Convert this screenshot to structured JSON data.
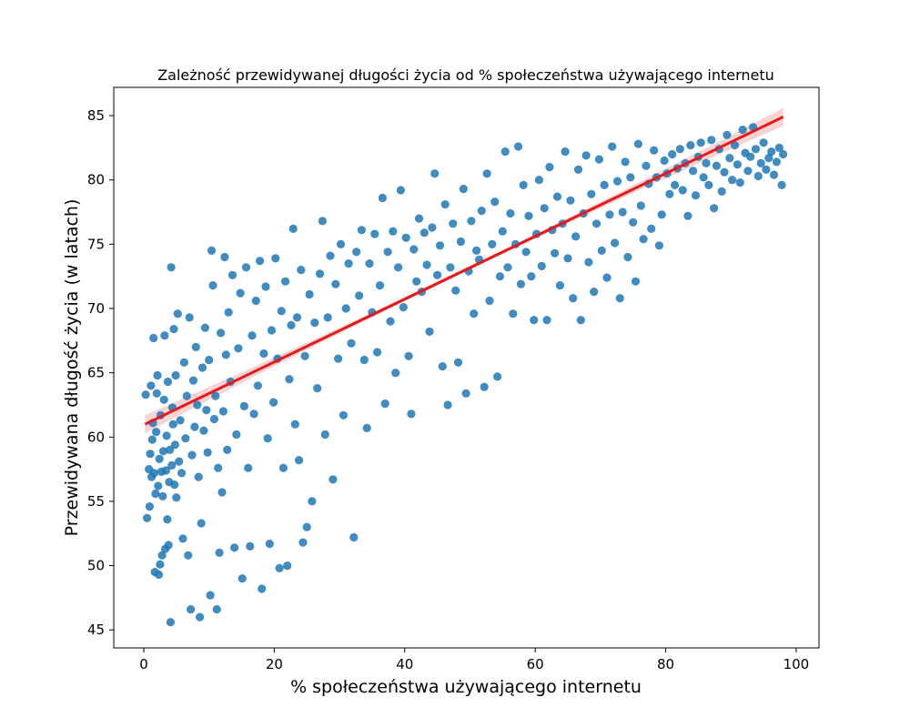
{
  "chart_data": {
    "type": "scatter",
    "title": "Zależność przewidywanej długości życia od % społeczeństwa używającego internetu",
    "xlabel": "% społeczeństwa używającego internetu",
    "ylabel": "Przewidywana długość życia (w latach)",
    "xlim": [
      -4.6,
      103.5
    ],
    "ylim": [
      43.6,
      87.2
    ],
    "xticks": [
      0,
      20,
      40,
      60,
      80,
      100
    ],
    "yticks": [
      45,
      50,
      55,
      60,
      65,
      70,
      75,
      80,
      85
    ],
    "grid": false,
    "legend": "none",
    "marker_color": "#1f77b4",
    "regression_color": "#e41a1c",
    "regression_line": {
      "x": [
        0.2,
        98.0
      ],
      "y": [
        61.0,
        84.9
      ]
    },
    "confidence_band_color": "#f4b6b6",
    "series": [
      {
        "points": [
          [
            0.3,
            63.3
          ],
          [
            0.5,
            53.7
          ],
          [
            0.8,
            57.5
          ],
          [
            0.9,
            54.6
          ],
          [
            1.0,
            58.7
          ],
          [
            1.1,
            64.0
          ],
          [
            1.2,
            56.9
          ],
          [
            1.3,
            59.8
          ],
          [
            1.4,
            61.1
          ],
          [
            1.5,
            67.7
          ],
          [
            1.6,
            57.2
          ],
          [
            1.7,
            49.5
          ],
          [
            1.8,
            55.6
          ],
          [
            1.9,
            60.4
          ],
          [
            2.0,
            63.4
          ],
          [
            2.1,
            64.8
          ],
          [
            2.2,
            56.2
          ],
          [
            2.3,
            49.3
          ],
          [
            2.4,
            58.3
          ],
          [
            2.5,
            50.1
          ],
          [
            2.6,
            61.7
          ],
          [
            2.7,
            57.3
          ],
          [
            2.8,
            50.8
          ],
          [
            2.9,
            55.4
          ],
          [
            3.0,
            58.9
          ],
          [
            3.1,
            62.9
          ],
          [
            3.2,
            67.9
          ],
          [
            3.3,
            51.3
          ],
          [
            3.4,
            57.4
          ],
          [
            3.5,
            60.1
          ],
          [
            3.6,
            53.6
          ],
          [
            3.7,
            64.3
          ],
          [
            3.8,
            51.6
          ],
          [
            3.9,
            56.5
          ],
          [
            4.0,
            59.0
          ],
          [
            4.1,
            45.6
          ],
          [
            4.2,
            73.2
          ],
          [
            4.3,
            57.8
          ],
          [
            4.4,
            62.3
          ],
          [
            4.5,
            61.0
          ],
          [
            4.6,
            68.4
          ],
          [
            4.7,
            56.3
          ],
          [
            4.8,
            59.4
          ],
          [
            4.9,
            64.8
          ],
          [
            5.0,
            55.3
          ],
          [
            5.2,
            69.6
          ],
          [
            5.4,
            58.1
          ],
          [
            5.6,
            61.3
          ],
          [
            5.8,
            57.2
          ],
          [
            6.0,
            52.1
          ],
          [
            6.2,
            65.8
          ],
          [
            6.4,
            59.9
          ],
          [
            6.6,
            63.2
          ],
          [
            6.8,
            50.8
          ],
          [
            7.0,
            69.3
          ],
          [
            7.2,
            46.6
          ],
          [
            7.4,
            58.6
          ],
          [
            7.6,
            64.4
          ],
          [
            7.8,
            60.8
          ],
          [
            8.0,
            67.0
          ],
          [
            8.2,
            62.5
          ],
          [
            8.4,
            56.9
          ],
          [
            8.6,
            46.0
          ],
          [
            8.8,
            53.3
          ],
          [
            9.0,
            65.4
          ],
          [
            9.2,
            60.5
          ],
          [
            9.4,
            68.5
          ],
          [
            9.6,
            62.1
          ],
          [
            9.8,
            58.8
          ],
          [
            10.0,
            66.0
          ],
          [
            10.2,
            47.7
          ],
          [
            10.4,
            74.5
          ],
          [
            10.6,
            71.8
          ],
          [
            10.8,
            61.4
          ],
          [
            11.0,
            63.2
          ],
          [
            11.2,
            46.6
          ],
          [
            11.4,
            57.6
          ],
          [
            11.6,
            51.0
          ],
          [
            11.8,
            68.1
          ],
          [
            12.0,
            55.7
          ],
          [
            12.2,
            62.0
          ],
          [
            12.4,
            74.0
          ],
          [
            12.6,
            66.4
          ],
          [
            12.8,
            59.0
          ],
          [
            13.0,
            69.7
          ],
          [
            13.3,
            64.3
          ],
          [
            13.6,
            72.6
          ],
          [
            13.9,
            51.4
          ],
          [
            14.2,
            60.2
          ],
          [
            14.5,
            66.9
          ],
          [
            14.8,
            71.2
          ],
          [
            15.1,
            49.0
          ],
          [
            15.4,
            62.4
          ],
          [
            15.7,
            73.2
          ],
          [
            16.0,
            57.6
          ],
          [
            16.3,
            51.5
          ],
          [
            16.6,
            67.9
          ],
          [
            16.9,
            61.8
          ],
          [
            17.2,
            70.6
          ],
          [
            17.5,
            64.0
          ],
          [
            17.8,
            73.7
          ],
          [
            18.1,
            48.2
          ],
          [
            18.4,
            66.5
          ],
          [
            18.7,
            71.7
          ],
          [
            19.0,
            59.9
          ],
          [
            19.3,
            51.7
          ],
          [
            19.6,
            68.3
          ],
          [
            19.9,
            62.7
          ],
          [
            20.2,
            73.9
          ],
          [
            20.5,
            66.1
          ],
          [
            20.8,
            49.8
          ],
          [
            21.1,
            69.8
          ],
          [
            21.4,
            57.6
          ],
          [
            21.7,
            72.1
          ],
          [
            22.0,
            50.0
          ],
          [
            22.3,
            64.5
          ],
          [
            22.6,
            68.7
          ],
          [
            22.9,
            76.2
          ],
          [
            23.2,
            61.0
          ],
          [
            23.5,
            69.3
          ],
          [
            23.8,
            58.2
          ],
          [
            24.1,
            73.0
          ],
          [
            24.4,
            51.8
          ],
          [
            24.7,
            66.3
          ],
          [
            25.0,
            53.0
          ],
          [
            25.4,
            71.1
          ],
          [
            25.8,
            55.0
          ],
          [
            26.2,
            68.9
          ],
          [
            26.6,
            63.8
          ],
          [
            27.0,
            72.7
          ],
          [
            27.4,
            76.8
          ],
          [
            27.8,
            60.2
          ],
          [
            28.2,
            69.3
          ],
          [
            28.6,
            74.1
          ],
          [
            29.0,
            56.7
          ],
          [
            29.4,
            71.9
          ],
          [
            29.8,
            66.1
          ],
          [
            30.2,
            75.0
          ],
          [
            30.6,
            61.7
          ],
          [
            31.0,
            70.0
          ],
          [
            31.4,
            73.5
          ],
          [
            31.8,
            67.3
          ],
          [
            32.2,
            52.2
          ],
          [
            32.6,
            74.4
          ],
          [
            33.0,
            71.0
          ],
          [
            33.4,
            76.1
          ],
          [
            33.8,
            66.0
          ],
          [
            34.2,
            60.7
          ],
          [
            34.6,
            73.5
          ],
          [
            35.0,
            69.7
          ],
          [
            35.4,
            75.8
          ],
          [
            35.8,
            66.6
          ],
          [
            36.2,
            71.8
          ],
          [
            36.6,
            78.6
          ],
          [
            37.0,
            62.6
          ],
          [
            37.4,
            74.4
          ],
          [
            37.8,
            69.0
          ],
          [
            38.2,
            76.0
          ],
          [
            38.6,
            65.0
          ],
          [
            39.0,
            73.2
          ],
          [
            39.4,
            79.2
          ],
          [
            39.8,
            70.1
          ],
          [
            40.2,
            75.5
          ],
          [
            40.6,
            66.3
          ],
          [
            41.0,
            61.8
          ],
          [
            41.4,
            74.6
          ],
          [
            41.8,
            72.1
          ],
          [
            42.2,
            77.0
          ],
          [
            42.6,
            71.3
          ],
          [
            43.0,
            75.9
          ],
          [
            43.4,
            73.4
          ],
          [
            43.8,
            68.2
          ],
          [
            44.2,
            76.3
          ],
          [
            44.6,
            80.5
          ],
          [
            45.0,
            72.6
          ],
          [
            45.4,
            74.9
          ],
          [
            45.8,
            65.5
          ],
          [
            46.2,
            78.1
          ],
          [
            46.6,
            62.5
          ],
          [
            47.0,
            73.2
          ],
          [
            47.4,
            76.6
          ],
          [
            47.8,
            71.4
          ],
          [
            48.2,
            65.8
          ],
          [
            48.6,
            75.2
          ],
          [
            49.0,
            79.3
          ],
          [
            49.4,
            63.4
          ],
          [
            49.8,
            72.9
          ],
          [
            50.2,
            76.8
          ],
          [
            50.6,
            69.6
          ],
          [
            51.0,
            74.5
          ],
          [
            51.4,
            73.8
          ],
          [
            51.8,
            77.6
          ],
          [
            52.2,
            63.9
          ],
          [
            52.6,
            80.5
          ],
          [
            53.0,
            70.6
          ],
          [
            53.4,
            75.0
          ],
          [
            53.8,
            78.3
          ],
          [
            54.2,
            64.7
          ],
          [
            54.6,
            72.5
          ],
          [
            55.0,
            76.0
          ],
          [
            55.4,
            82.2
          ],
          [
            55.8,
            73.2
          ],
          [
            56.2,
            77.4
          ],
          [
            56.6,
            69.6
          ],
          [
            57.0,
            75.0
          ],
          [
            57.4,
            82.6
          ],
          [
            57.8,
            71.9
          ],
          [
            58.2,
            79.6
          ],
          [
            58.6,
            74.4
          ],
          [
            59.0,
            77.2
          ],
          [
            59.4,
            72.5
          ],
          [
            59.8,
            69.1
          ],
          [
            60.2,
            75.8
          ],
          [
            60.6,
            80.0
          ],
          [
            61.0,
            73.3
          ],
          [
            61.4,
            77.8
          ],
          [
            61.8,
            69.1
          ],
          [
            62.2,
            81.0
          ],
          [
            62.6,
            76.1
          ],
          [
            63.0,
            74.3
          ],
          [
            63.4,
            78.7
          ],
          [
            63.8,
            71.8
          ],
          [
            64.2,
            76.6
          ],
          [
            64.6,
            82.2
          ],
          [
            65.0,
            73.9
          ],
          [
            65.4,
            78.4
          ],
          [
            65.8,
            70.8
          ],
          [
            66.2,
            75.6
          ],
          [
            66.6,
            80.8
          ],
          [
            67.0,
            69.1
          ],
          [
            67.4,
            77.4
          ],
          [
            67.8,
            81.9
          ],
          [
            68.2,
            73.6
          ],
          [
            68.6,
            78.9
          ],
          [
            69.0,
            71.3
          ],
          [
            69.4,
            76.6
          ],
          [
            69.8,
            81.6
          ],
          [
            70.2,
            74.5
          ],
          [
            70.6,
            79.6
          ],
          [
            71.0,
            72.4
          ],
          [
            71.4,
            77.3
          ],
          [
            71.8,
            82.6
          ],
          [
            72.2,
            75.1
          ],
          [
            72.6,
            79.9
          ],
          [
            73.0,
            70.8
          ],
          [
            73.4,
            77.5
          ],
          [
            73.8,
            81.4
          ],
          [
            74.2,
            74.0
          ],
          [
            74.6,
            80.2
          ],
          [
            75.0,
            76.7
          ],
          [
            75.4,
            72.1
          ],
          [
            75.8,
            82.8
          ],
          [
            76.2,
            78.0
          ],
          [
            76.6,
            75.4
          ],
          [
            77.0,
            81.1
          ],
          [
            77.4,
            79.7
          ],
          [
            77.8,
            76.2
          ],
          [
            78.2,
            82.3
          ],
          [
            78.6,
            80.2
          ],
          [
            79.0,
            74.9
          ],
          [
            79.4,
            77.3
          ],
          [
            79.8,
            81.5
          ],
          [
            80.2,
            80.5
          ],
          [
            80.6,
            78.9
          ],
          [
            81.0,
            82.0
          ],
          [
            81.4,
            79.6
          ],
          [
            81.8,
            80.9
          ],
          [
            82.2,
            82.4
          ],
          [
            82.6,
            79.2
          ],
          [
            83.0,
            81.3
          ],
          [
            83.4,
            77.2
          ],
          [
            83.8,
            82.7
          ],
          [
            84.2,
            80.7
          ],
          [
            84.6,
            78.8
          ],
          [
            85.0,
            81.8
          ],
          [
            85.4,
            82.9
          ],
          [
            85.8,
            80.2
          ],
          [
            86.2,
            81.3
          ],
          [
            86.6,
            79.6
          ],
          [
            87.0,
            83.1
          ],
          [
            87.4,
            77.8
          ],
          [
            87.8,
            81.1
          ],
          [
            88.2,
            82.4
          ],
          [
            88.6,
            79.1
          ],
          [
            89.0,
            80.6
          ],
          [
            89.4,
            83.5
          ],
          [
            89.8,
            81.7
          ],
          [
            90.2,
            80.0
          ],
          [
            90.6,
            82.7
          ],
          [
            91.0,
            81.2
          ],
          [
            91.4,
            79.8
          ],
          [
            91.8,
            83.9
          ],
          [
            92.2,
            82.1
          ],
          [
            92.6,
            80.7
          ],
          [
            93.0,
            81.8
          ],
          [
            93.4,
            84.1
          ],
          [
            93.8,
            82.4
          ],
          [
            94.2,
            80.3
          ],
          [
            94.6,
            81.3
          ],
          [
            95.0,
            82.9
          ],
          [
            95.4,
            80.8
          ],
          [
            95.8,
            81.7
          ],
          [
            96.2,
            82.2
          ],
          [
            96.6,
            80.4
          ],
          [
            97.0,
            81.4
          ],
          [
            97.4,
            82.5
          ],
          [
            97.8,
            79.6
          ],
          [
            98.0,
            82.0
          ]
        ]
      }
    ]
  }
}
